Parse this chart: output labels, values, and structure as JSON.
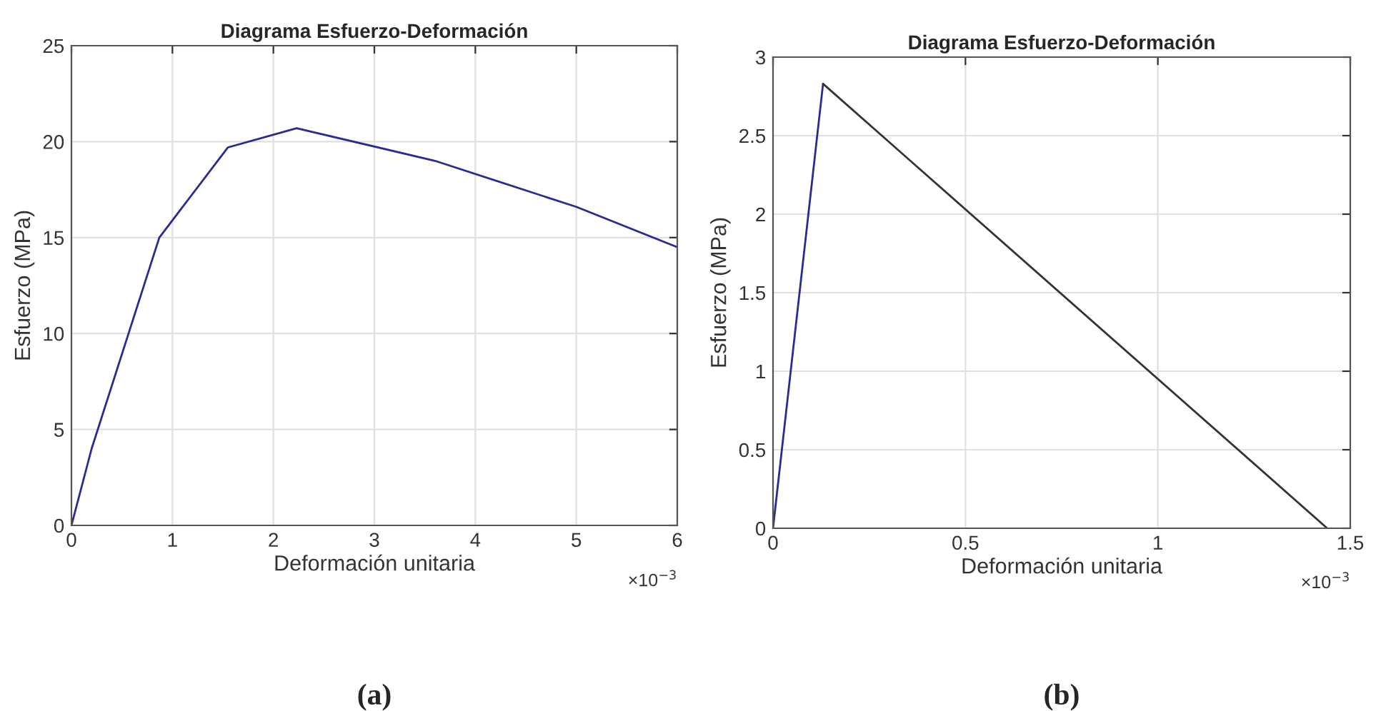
{
  "chart_data": [
    {
      "type": "line",
      "title": "Diagrama Esfuerzo-Deformación",
      "xlabel": "Deformación unitaria",
      "ylabel": "Esfuerzo (MPa)",
      "grid": true,
      "series": [
        {
          "color": "#2a2a96",
          "x": [
            0,
            0.2,
            0.87,
            1.55,
            2.23,
            3.6,
            5.0,
            6.0
          ],
          "values": [
            0,
            4,
            15,
            19.7,
            20.7,
            19.0,
            16.6,
            14.5
          ]
        }
      ],
      "xlim": [
        0,
        6
      ],
      "xticks": [
        0,
        1,
        2,
        3,
        4,
        5,
        6
      ],
      "ylim": [
        0,
        25
      ],
      "yticks": [
        0,
        5,
        10,
        15,
        20,
        25
      ],
      "annotations": [
        "×10$^{−3}$",
        "(a)"
      ]
    },
    {
      "type": "line",
      "title": "Diagrama Esfuerzo-Deformación",
      "xlabel": "Deformación unitaria",
      "ylabel": "Esfuerzo (MPa)",
      "grid": true,
      "series": [
        {
          "color": "#2a2a96",
          "x": [
            0,
            0.13
          ],
          "values": [
            0,
            2.83
          ]
        },
        {
          "color": "#333333",
          "x": [
            0.13,
            1.44
          ],
          "values": [
            2.83,
            0
          ]
        }
      ],
      "xlim": [
        0,
        1.5
      ],
      "xticks": [
        0,
        0.5,
        1,
        1.5
      ],
      "ylim": [
        0,
        3
      ],
      "yticks": [
        0,
        0.5,
        1,
        1.5,
        2,
        2.5,
        3
      ],
      "annotations": [
        "×10$^{−3}$",
        "(b)"
      ]
    }
  ]
}
